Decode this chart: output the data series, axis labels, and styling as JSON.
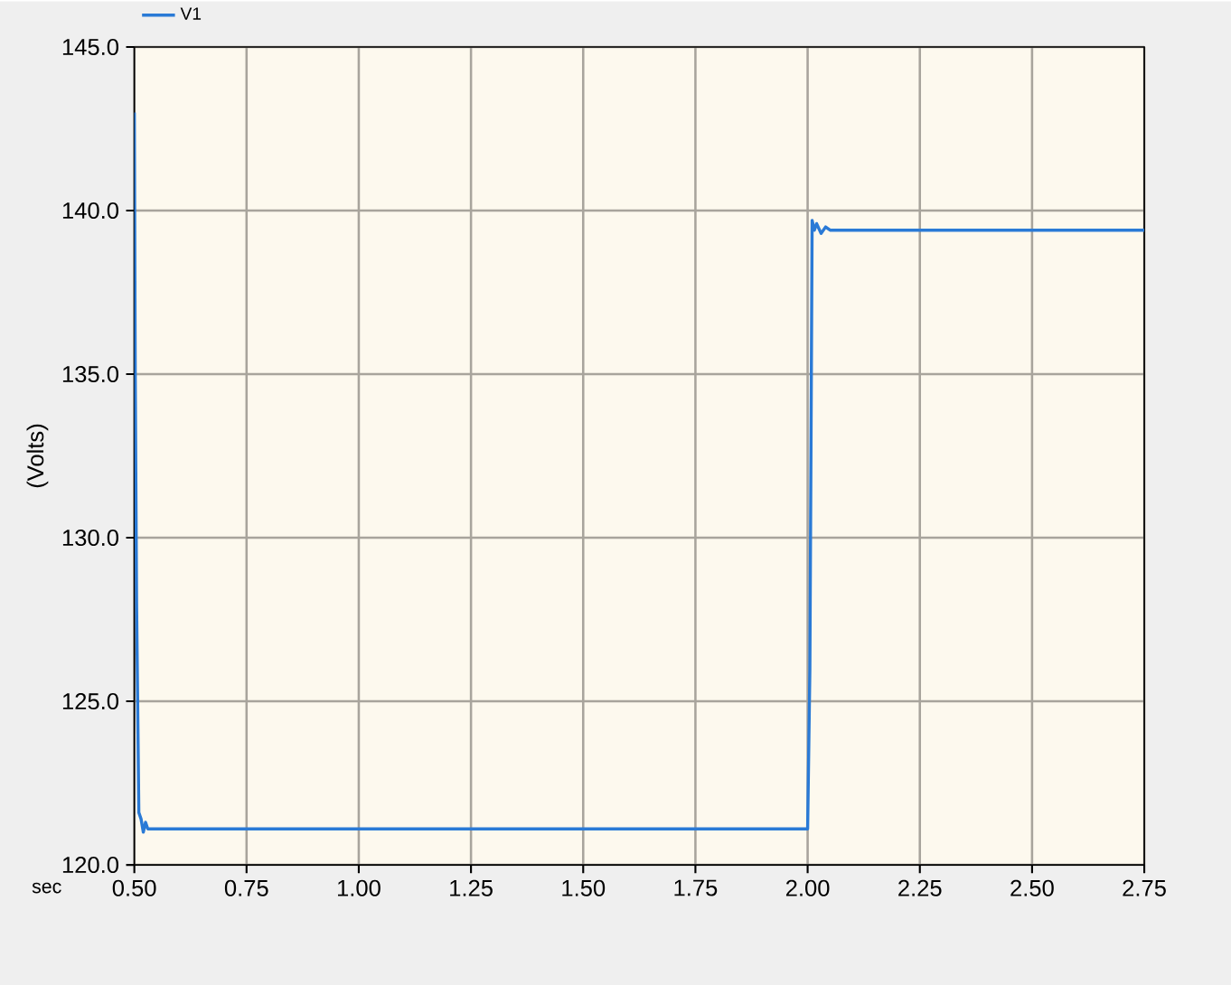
{
  "chart_data": {
    "type": "line",
    "xlabel": "sec",
    "ylabel": "(Volts)",
    "x": [
      0.5,
      0.502,
      0.505,
      0.51,
      0.515,
      0.52,
      0.525,
      0.53,
      0.54,
      0.6,
      1.0,
      1.5,
      1.995,
      2.0,
      2.005,
      2.01,
      2.015,
      2.02,
      2.03,
      2.04,
      2.05,
      2.1,
      2.5,
      2.75
    ],
    "series": [
      {
        "name": "V1",
        "color": "#2a7ad6",
        "values": [
          143,
          135,
          128,
          121.6,
          121.4,
          121.0,
          121.3,
          121.1,
          121.1,
          121.1,
          121.1,
          121.1,
          121.1,
          121.1,
          126,
          139.7,
          139.4,
          139.6,
          139.3,
          139.5,
          139.4,
          139.4,
          139.4,
          139.4
        ]
      }
    ],
    "xlim": [
      0.5,
      2.75
    ],
    "ylim": [
      120,
      145
    ],
    "xticks": [
      {
        "value": 0.5,
        "label": "0.50"
      },
      0.75,
      {
        "value": 1.0,
        "label": "1.00"
      },
      1.25,
      {
        "value": 1.5,
        "label": "1.50"
      },
      1.75,
      {
        "value": 2.0,
        "label": "2.00"
      },
      2.25,
      {
        "value": 2.5,
        "label": "2.50"
      },
      2.75
    ],
    "yticks": [
      {
        "value": 120,
        "label": "120.0"
      },
      {
        "value": 125,
        "label": "125.0"
      },
      {
        "value": 130,
        "label": "130.0"
      },
      {
        "value": 135,
        "label": "135.0"
      },
      {
        "value": 140,
        "label": "140.0"
      },
      {
        "value": 145,
        "label": "145.0"
      }
    ],
    "grid": true,
    "legend": "top left",
    "marker": "none",
    "line_style": "solid"
  }
}
